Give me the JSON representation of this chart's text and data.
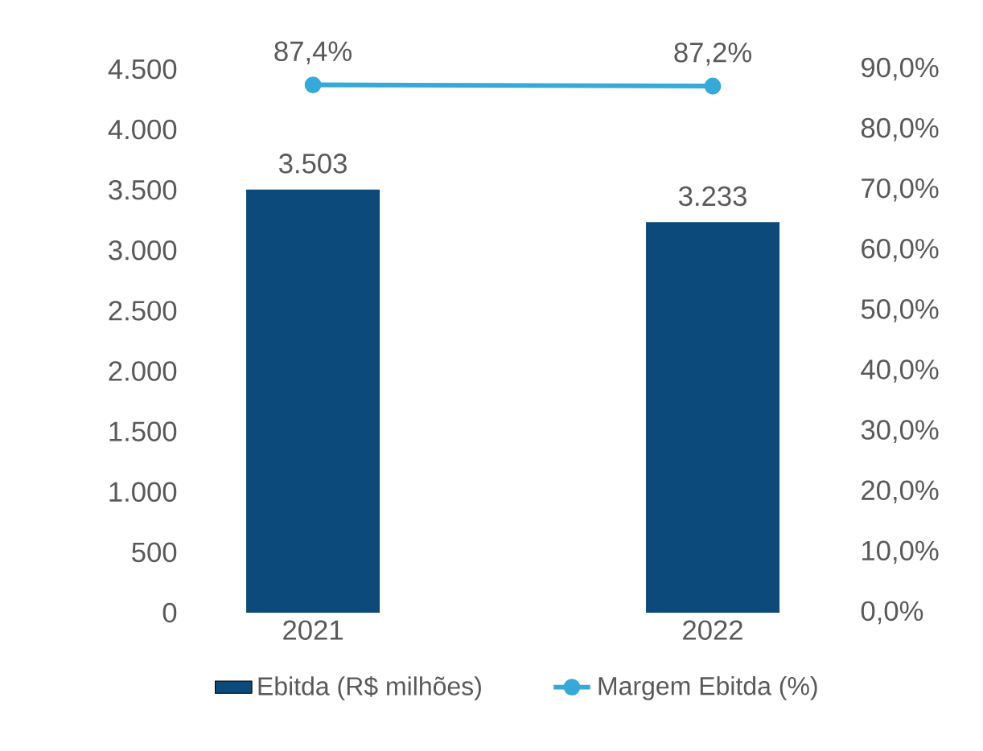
{
  "chart_data": {
    "type": "bar",
    "categories": [
      "2021",
      "2022"
    ],
    "series": [
      {
        "name": "Ebitda (R$ milhões)",
        "color": "#0b4a7b",
        "values": [
          3503,
          3233
        ],
        "value_labels": [
          "3.503",
          "3.233"
        ]
      },
      {
        "name": "Margem Ebitda (%)",
        "type": "line",
        "axis": "y2",
        "color": "#36a9d8",
        "values": [
          87.4,
          87.2
        ],
        "value_labels": [
          "87,4%",
          "87,2%"
        ]
      }
    ],
    "ylim": [
      0,
      4500
    ],
    "yticks": [
      {
        "value": 0,
        "label": "0"
      },
      {
        "value": 500,
        "label": "500"
      },
      {
        "value": 1000,
        "label": "1.000"
      },
      {
        "value": 1500,
        "label": "1.500"
      },
      {
        "value": 2000,
        "label": "2.000"
      },
      {
        "value": 2500,
        "label": "2.500"
      },
      {
        "value": 3000,
        "label": "3.000"
      },
      {
        "value": 3500,
        "label": "3.500"
      },
      {
        "value": 4000,
        "label": "4.000"
      },
      {
        "value": 4500,
        "label": "4.500"
      }
    ],
    "y2lim": [
      0,
      90
    ],
    "y2ticks": [
      {
        "value": 0,
        "label": "0,0%"
      },
      {
        "value": 10,
        "label": "10,0%"
      },
      {
        "value": 20,
        "label": "20,0%"
      },
      {
        "value": 30,
        "label": "30,0%"
      },
      {
        "value": 40,
        "label": "40,0%"
      },
      {
        "value": 50,
        "label": "50,0%"
      },
      {
        "value": 60,
        "label": "60,0%"
      },
      {
        "value": 70,
        "label": "70,0%"
      },
      {
        "value": 80,
        "label": "80,0%"
      },
      {
        "value": 90,
        "label": "90,0%"
      }
    ],
    "marker": "circle",
    "legend": "bottom"
  }
}
